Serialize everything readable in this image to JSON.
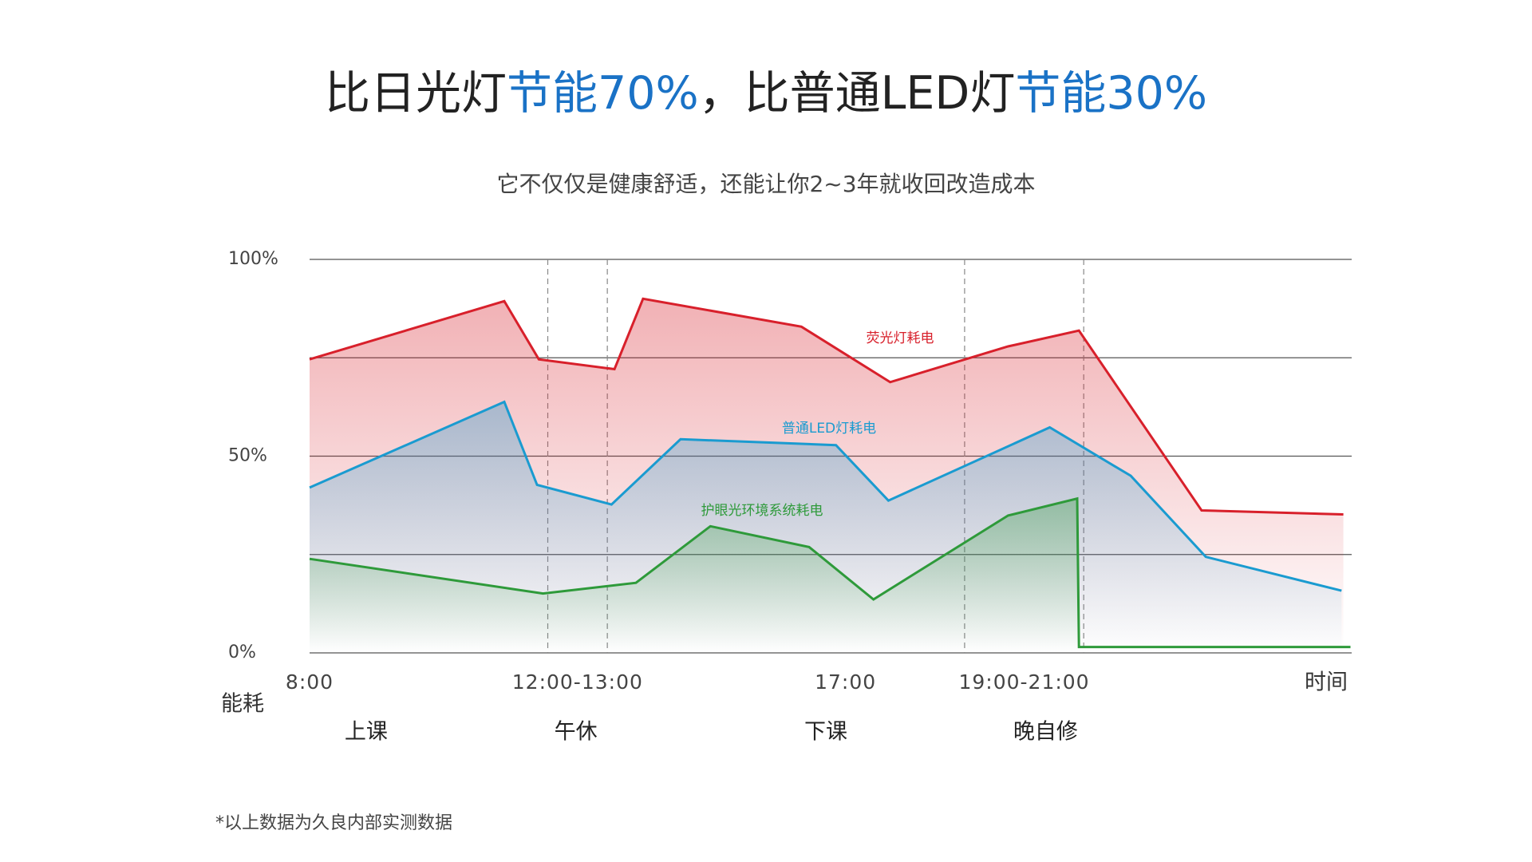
{
  "chart_data": {
    "type": "line",
    "title": [
      {
        "text": "比日光灯",
        "color": "#222222"
      },
      {
        "text": "节能70%",
        "color": "#1a72c6"
      },
      {
        "text": "，比普通LED灯",
        "color": "#222222"
      },
      {
        "text": "节能30%",
        "color": "#1a72c6"
      }
    ],
    "subtitle": "它不仅仅是健康舒适，还能让你2~3年就收回改造成本",
    "y_label": "能耗",
    "x_label": "时间",
    "xlim": [
      8,
      25.5
    ],
    "ylim": [
      0,
      100
    ],
    "xticks": [
      {
        "value": 8,
        "label": "8:00"
      },
      {
        "value": 12.5,
        "label": "12:00-13:00"
      },
      {
        "value": 17,
        "label": "17:00"
      },
      {
        "value": 20,
        "label": "19:00-21:00"
      }
    ],
    "yticks": [
      {
        "value": 0,
        "label": "0%"
      },
      {
        "value": 25,
        "label": null
      },
      {
        "value": 50,
        "label": "50%"
      },
      {
        "value": 75,
        "label": null
      },
      {
        "value": 100,
        "label": "100%"
      }
    ],
    "grid": true,
    "dividers": [
      12,
      13,
      19,
      21
    ],
    "periods": [
      {
        "label": "上课",
        "x": 8.95
      },
      {
        "label": "午休",
        "x": 12.47
      },
      {
        "label": "下课",
        "x": 16.67
      },
      {
        "label": "晚自修",
        "x": 20.36
      }
    ],
    "series": [
      {
        "name": "荧光灯耗电",
        "color": "#d8202b",
        "x": [
          8,
          11.27,
          11.85,
          13.12,
          13.6,
          16.26,
          17.75,
          19.73,
          20.92,
          22.98,
          25.36
        ],
        "values": [
          74.6,
          89.4,
          74.6,
          72.1,
          90,
          82.9,
          68.8,
          77.9,
          81.9,
          36.2,
          35.2
        ]
      },
      {
        "name": "普通LED灯耗电",
        "color": "#1a9bd0",
        "x": [
          8,
          11.27,
          11.82,
          13.07,
          14.23,
          16.84,
          17.72,
          20.43,
          21.79,
          23.05,
          25.33
        ],
        "values": [
          42,
          63.8,
          42.7,
          37.7,
          54.3,
          52.8,
          38.7,
          57.3,
          45,
          24.4,
          15.8
        ]
      },
      {
        "name": "护眼光环境系统耗电",
        "color": "#2e9a3a",
        "x": [
          8,
          11.92,
          13.48,
          14.73,
          16.39,
          17.47,
          19.73,
          20.89,
          20.92,
          25.48
        ],
        "values": [
          23.9,
          15.1,
          17.8,
          32.2,
          26.9,
          13.6,
          34.9,
          39.2,
          1.5,
          1.5
        ]
      }
    ]
  },
  "footnote": "*以上数据为久良内部实测数据"
}
